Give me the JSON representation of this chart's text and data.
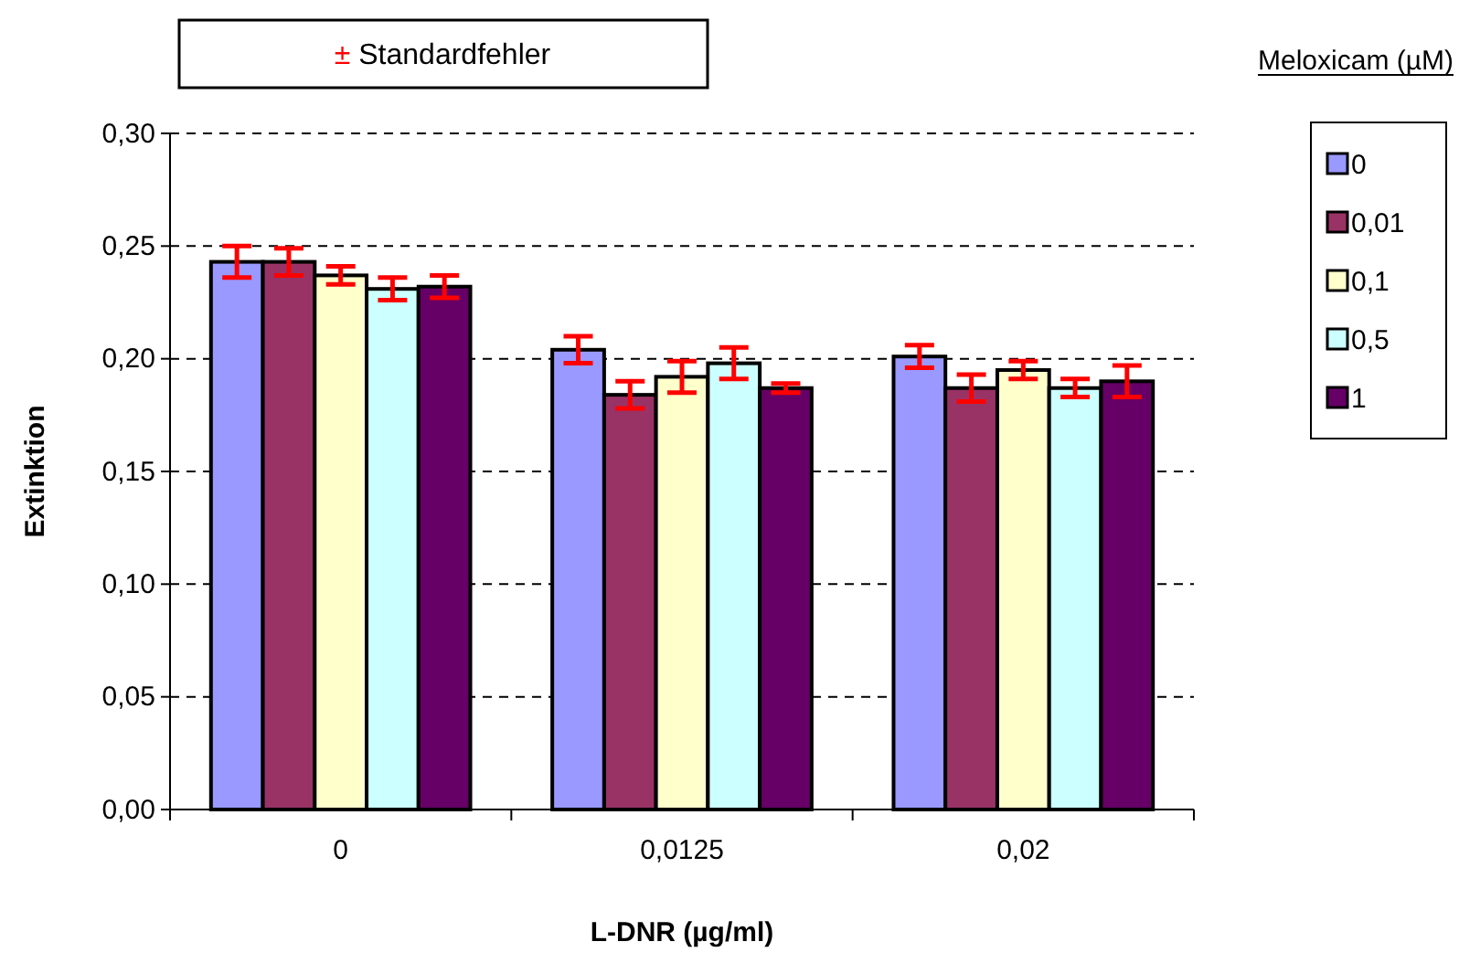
{
  "chart_data": {
    "type": "bar",
    "xlabel": "L-DNR (µg/ml)",
    "ylabel": "Extinktion",
    "legend_title": "Meloxicam (µM)",
    "annotations": [
      "± Standardfehler"
    ],
    "categories": [
      "0",
      "0,0125",
      "0,02"
    ],
    "series": [
      {
        "name": "0",
        "color": "#9999ff",
        "values": [
          0.243,
          0.204,
          0.201
        ],
        "errors": [
          0.007,
          0.006,
          0.005
        ]
      },
      {
        "name": "0,01",
        "color": "#993366",
        "values": [
          0.243,
          0.184,
          0.187
        ],
        "errors": [
          0.006,
          0.006,
          0.006
        ]
      },
      {
        "name": "0,1",
        "color": "#ffffcc",
        "values": [
          0.237,
          0.192,
          0.195
        ],
        "errors": [
          0.004,
          0.007,
          0.004
        ]
      },
      {
        "name": "0,5",
        "color": "#ccffff",
        "values": [
          0.231,
          0.198,
          0.187
        ],
        "errors": [
          0.005,
          0.007,
          0.004
        ]
      },
      {
        "name": "1",
        "color": "#660066",
        "values": [
          0.232,
          0.187,
          0.19
        ],
        "errors": [
          0.005,
          0.002,
          0.007
        ]
      }
    ],
    "ylim": [
      0,
      0.3
    ],
    "yticks": [
      {
        "value": 0,
        "label": "0,00"
      },
      {
        "value": 0.05,
        "label": "0,05"
      },
      {
        "value": 0.1,
        "label": "0,10"
      },
      {
        "value": 0.15,
        "label": "0,15"
      },
      {
        "value": 0.2,
        "label": "0,20"
      },
      {
        "value": 0.25,
        "label": "0,25"
      },
      {
        "value": 0.3,
        "label": "0,30"
      }
    ],
    "grid": "y",
    "legend": "right"
  }
}
